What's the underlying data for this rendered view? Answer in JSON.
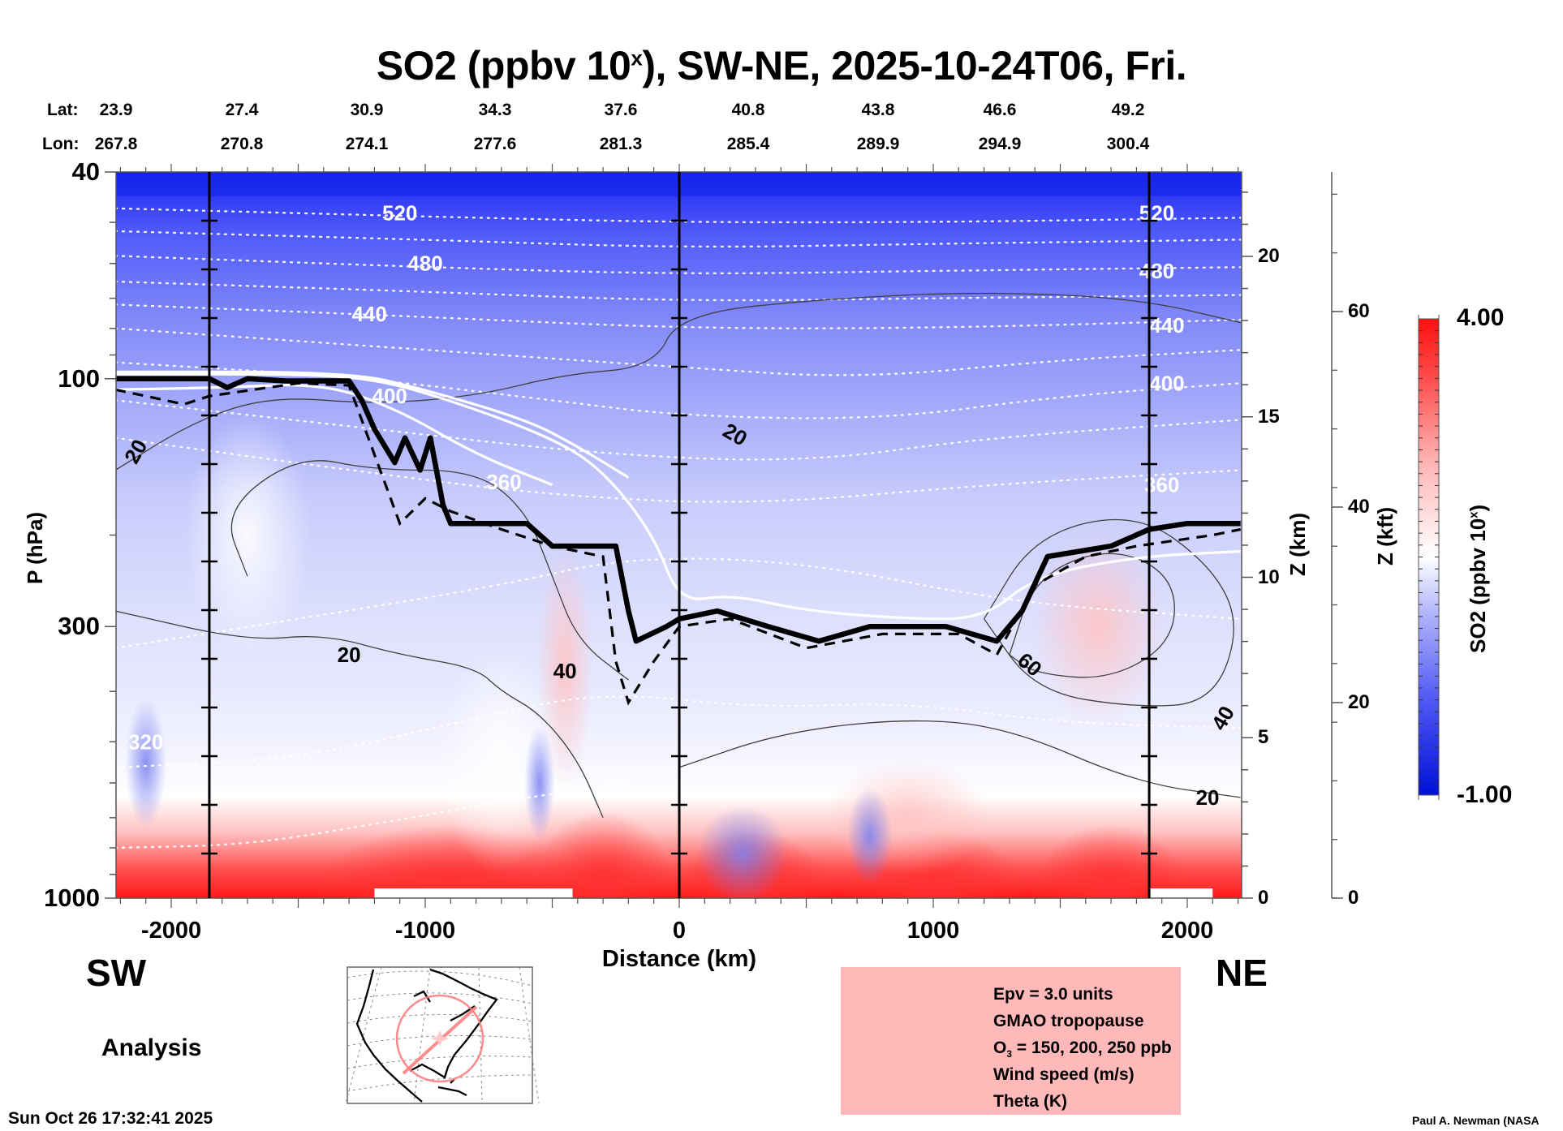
{
  "title": {
    "main": "SO2 (ppbv 10",
    "superscript": "x",
    "rest": "), SW-NE, 2025-10-24T06, Fri."
  },
  "header": {
    "lat_key": "Lat:",
    "lon_key": "Lon:",
    "points": [
      {
        "lat": "23.9",
        "lon": "267.8"
      },
      {
        "lat": "27.4",
        "lon": "270.8"
      },
      {
        "lat": "30.9",
        "lon": "274.1"
      },
      {
        "lat": "34.3",
        "lon": "277.6"
      },
      {
        "lat": "37.6",
        "lon": "281.3"
      },
      {
        "lat": "40.8",
        "lon": "285.4"
      },
      {
        "lat": "43.8",
        "lon": "289.9"
      },
      {
        "lat": "46.6",
        "lon": "294.9"
      },
      {
        "lat": "49.2",
        "lon": "300.4"
      }
    ]
  },
  "labels": {
    "sw": "SW",
    "ne": "NE",
    "analysis": "Analysis",
    "timestamp": "Sun Oct 26 17:32:41 2025",
    "credit": "Paul A. Newman (NASA"
  },
  "legend": {
    "items": [
      {
        "style": "dashed-thick",
        "label": "Epv = 3.0 units"
      },
      {
        "style": "solid-thick",
        "label": "GMAO tropopause"
      },
      {
        "style": "white-solid",
        "label_pre": "O",
        "label_sub": "3",
        "label_post": " = 150, 200, 250 ppb"
      },
      {
        "style": "thin-solid",
        "label": "Wind speed (m/s)"
      },
      {
        "style": "white-dotted",
        "label": "Theta (K)"
      }
    ]
  },
  "colors": {
    "field_min": "#0010d8",
    "field_mid": "#ffffff",
    "field_max": "#ff1010",
    "legend_bg": "#ffb9b9",
    "map_track": "#ff8080"
  },
  "chart_data": {
    "type": "heatmap",
    "title": "SO2 (ppbv 10^x), SW-NE, 2025-10-24T06, Fri.",
    "xlabel": "Distance (km)",
    "ylabel": "P (hPa)",
    "ylabel_right_1": "Z (km)",
    "ylabel_right_2": "Z (kft)",
    "xlim": [
      -2220,
      2210
    ],
    "ylim": [
      1000,
      40
    ],
    "yscale": "log",
    "x_ticks": [
      -2000,
      -1000,
      0,
      1000,
      2000
    ],
    "x_tick_labels": [
      "-2000",
      "-1000",
      "0",
      "1000",
      "2000"
    ],
    "y_ticks": [
      40,
      100,
      300,
      1000
    ],
    "y_tick_labels": [
      "40",
      "100",
      "300",
      "1000"
    ],
    "z_km_ticks": [
      0,
      5,
      10,
      15,
      20
    ],
    "z_kft_ticks": [
      0,
      20,
      40,
      60
    ],
    "vertical_markers_km": [
      -1850,
      0,
      1850
    ],
    "colorbar": {
      "label": "SO2 (ppbv 10^x)",
      "label_main": "SO2 (ppbv 10",
      "label_sup": "x",
      "label_end": ")",
      "min": -1.0,
      "max": 4.0,
      "min_label": "-1.00",
      "max_label": "4.00",
      "levels": 40
    },
    "theta_contours_K": [
      {
        "value": 520,
        "label": "520",
        "points": [
          [
            -2220,
            47
          ],
          [
            -1500,
            48
          ],
          [
            -800,
            49
          ],
          [
            0,
            50
          ],
          [
            1000,
            50
          ],
          [
            2210,
            49
          ]
        ]
      },
      {
        "value": 500,
        "label": "",
        "points": [
          [
            -2220,
            52
          ],
          [
            -1000,
            54
          ],
          [
            0,
            56
          ],
          [
            1000,
            55
          ],
          [
            2210,
            54
          ]
        ]
      },
      {
        "value": 480,
        "label": "480",
        "points": [
          [
            -2220,
            58
          ],
          [
            -1000,
            61
          ],
          [
            0,
            63
          ],
          [
            1000,
            62
          ],
          [
            2210,
            61
          ]
        ]
      },
      {
        "value": 460,
        "label": "",
        "points": [
          [
            -2220,
            65
          ],
          [
            -1000,
            68
          ],
          [
            0,
            71
          ],
          [
            1000,
            70
          ],
          [
            2210,
            69
          ]
        ]
      },
      {
        "value": 440,
        "label": "440",
        "points": [
          [
            -2220,
            72
          ],
          [
            -1000,
            76
          ],
          [
            0,
            80
          ],
          [
            1000,
            80
          ],
          [
            2210,
            77
          ]
        ]
      },
      {
        "value": 420,
        "label": "",
        "points": [
          [
            -2220,
            80
          ],
          [
            -1000,
            88
          ],
          [
            0,
            95
          ],
          [
            700,
            100
          ],
          [
            1500,
            92
          ],
          [
            2210,
            88
          ]
        ]
      },
      {
        "value": 400,
        "label": "400",
        "points": [
          [
            -2220,
            93
          ],
          [
            -1300,
            99
          ],
          [
            -500,
            110
          ],
          [
            0,
            118
          ],
          [
            800,
            120
          ],
          [
            1500,
            108
          ],
          [
            2210,
            102
          ]
        ]
      },
      {
        "value": 380,
        "label": "",
        "points": [
          [
            -2220,
            110
          ],
          [
            -1200,
            125
          ],
          [
            -300,
            140
          ],
          [
            500,
            145
          ],
          [
            1200,
            130
          ],
          [
            2210,
            120
          ]
        ]
      },
      {
        "value": 360,
        "label": "360",
        "points": [
          [
            -2220,
            130
          ],
          [
            -1300,
            150
          ],
          [
            -500,
            168
          ],
          [
            300,
            175
          ],
          [
            1200,
            160
          ],
          [
            2210,
            150
          ]
        ]
      },
      {
        "value": 320,
        "label": "320",
        "points": [
          [
            -2220,
            330
          ],
          [
            -1500,
            290
          ],
          [
            -700,
            250
          ],
          [
            -200,
            220
          ],
          [
            500,
            225
          ],
          [
            1300,
            270
          ],
          [
            2210,
            290
          ]
        ]
      },
      {
        "value": 300,
        "label": "",
        "points": [
          [
            -2220,
            560
          ],
          [
            -1500,
            540
          ],
          [
            -800,
            450
          ],
          [
            -300,
            400
          ],
          [
            300,
            430
          ],
          [
            900,
            420
          ],
          [
            1500,
            460
          ],
          [
            2210,
            470
          ]
        ]
      },
      {
        "value": 290,
        "label": "",
        "points": [
          [
            -2220,
            800
          ],
          [
            -1700,
            790
          ],
          [
            -1200,
            720
          ],
          [
            -600,
            640
          ],
          [
            -200,
            600
          ]
        ]
      }
    ],
    "wind_contours_ms": [
      {
        "value": 20,
        "label": "20",
        "points": [
          [
            -2220,
            150
          ],
          [
            -1900,
            120
          ],
          [
            -1600,
            108
          ],
          [
            -1200,
            112
          ],
          [
            -800,
            108
          ],
          [
            -450,
            98
          ],
          [
            -100,
            95
          ],
          [
            0,
            75
          ],
          [
            600,
            70
          ],
          [
            1200,
            68
          ],
          [
            1800,
            70
          ],
          [
            2210,
            78
          ]
        ]
      },
      {
        "value": 20,
        "label": "20",
        "points": [
          [
            -2220,
            280
          ],
          [
            -1700,
            320
          ],
          [
            -1400,
            310
          ],
          [
            -1100,
            340
          ],
          [
            -800,
            360
          ],
          [
            -700,
            400
          ],
          [
            -550,
            440
          ],
          [
            -400,
            540
          ],
          [
            -300,
            700
          ]
        ]
      },
      {
        "value": 40,
        "label": "40",
        "points": [
          [
            -1700,
            240
          ],
          [
            -1800,
            180
          ],
          [
            -1500,
            140
          ],
          [
            -1200,
            150
          ],
          [
            -800,
            150
          ],
          [
            -600,
            180
          ],
          [
            -500,
            240
          ],
          [
            -400,
            320
          ],
          [
            -200,
            380
          ]
        ]
      },
      {
        "value": 60,
        "label": "60",
        "points": [
          [
            1300,
            340
          ],
          [
            1400,
            240
          ],
          [
            1700,
            210
          ],
          [
            1950,
            240
          ],
          [
            1950,
            320
          ],
          [
            1700,
            380
          ],
          [
            1400,
            370
          ],
          [
            1300,
            340
          ]
        ]
      },
      {
        "value": 40,
        "label": "40",
        "points": [
          [
            1200,
            290
          ],
          [
            1400,
            200
          ],
          [
            1800,
            180
          ],
          [
            2100,
            230
          ],
          [
            2210,
            300
          ],
          [
            2100,
            420
          ],
          [
            1800,
            430
          ],
          [
            1400,
            400
          ],
          [
            1200,
            290
          ]
        ]
      },
      {
        "value": 20,
        "label": "20",
        "points": [
          [
            0,
            560
          ],
          [
            400,
            480
          ],
          [
            900,
            450
          ],
          [
            1300,
            470
          ],
          [
            1800,
            600
          ],
          [
            2210,
            640
          ]
        ]
      }
    ],
    "gmao_tropopause_hPa": {
      "points": [
        [
          -2220,
          100
        ],
        [
          -1850,
          100
        ],
        [
          -1780,
          104
        ],
        [
          -1700,
          100
        ],
        [
          -1550,
          101
        ],
        [
          -1300,
          101
        ],
        [
          -1250,
          110
        ],
        [
          -1200,
          125
        ],
        [
          -1120,
          145
        ],
        [
          -1080,
          130
        ],
        [
          -1020,
          150
        ],
        [
          -980,
          130
        ],
        [
          -930,
          175
        ],
        [
          -900,
          190
        ],
        [
          -600,
          190
        ],
        [
          -500,
          210
        ],
        [
          -250,
          210
        ],
        [
          -200,
          280
        ],
        [
          -170,
          320
        ],
        [
          -50,
          300
        ],
        [
          0,
          290
        ],
        [
          150,
          280
        ],
        [
          350,
          300
        ],
        [
          550,
          320
        ],
        [
          750,
          300
        ],
        [
          1050,
          300
        ],
        [
          1250,
          320
        ],
        [
          1350,
          280
        ],
        [
          1450,
          220
        ],
        [
          1700,
          210
        ],
        [
          1850,
          195
        ],
        [
          2000,
          190
        ],
        [
          2210,
          190
        ]
      ]
    },
    "epv_3pvu_hPa": {
      "points": [
        [
          -2220,
          105
        ],
        [
          -2100,
          108
        ],
        [
          -1950,
          112
        ],
        [
          -1850,
          108
        ],
        [
          -1500,
          102
        ],
        [
          -1300,
          103
        ],
        [
          -1200,
          140
        ],
        [
          -1100,
          190
        ],
        [
          -1000,
          170
        ],
        [
          -900,
          180
        ],
        [
          -700,
          195
        ],
        [
          -500,
          210
        ],
        [
          -300,
          220
        ],
        [
          -250,
          350
        ],
        [
          -200,
          420
        ],
        [
          -100,
          350
        ],
        [
          0,
          300
        ],
        [
          200,
          290
        ],
        [
          500,
          330
        ],
        [
          800,
          310
        ],
        [
          1100,
          310
        ],
        [
          1250,
          340
        ],
        [
          1400,
          250
        ],
        [
          1600,
          220
        ],
        [
          1800,
          210
        ],
        [
          2100,
          200
        ],
        [
          2210,
          195
        ]
      ]
    },
    "ozone_ppb": [
      {
        "value": 150,
        "points": [
          [
            -2220,
            98
          ],
          [
            -1500,
            98
          ],
          [
            -1200,
            100
          ],
          [
            -900,
            110
          ],
          [
            -500,
            130
          ],
          [
            -300,
            150
          ],
          [
            -100,
            200
          ],
          [
            0,
            270
          ],
          [
            200,
            260
          ],
          [
            500,
            280
          ],
          [
            900,
            290
          ],
          [
            1200,
            290
          ],
          [
            1400,
            240
          ],
          [
            1800,
            220
          ],
          [
            2210,
            215
          ]
        ]
      },
      {
        "value": 200,
        "points": [
          [
            -2220,
            97
          ],
          [
            -1300,
            97
          ],
          [
            -1000,
            105
          ],
          [
            -600,
            120
          ],
          [
            -400,
            135
          ],
          [
            -200,
            155
          ]
        ]
      },
      {
        "value": 250,
        "points": [
          [
            -2220,
            105
          ],
          [
            -1800,
            104
          ],
          [
            -1400,
            102
          ],
          [
            -1100,
            115
          ],
          [
            -800,
            140
          ],
          [
            -500,
            160
          ]
        ]
      }
    ],
    "so2_features": [
      {
        "region": "stratosphere_top",
        "x_range": [
          -2220,
          2210
        ],
        "p_range": [
          40,
          60
        ],
        "value": -0.9
      },
      {
        "region": "surface_boundary_layer_sw",
        "x_range": [
          -1800,
          0
        ],
        "p_range": [
          850,
          1000
        ],
        "value": 3.8
      },
      {
        "region": "surface_boundary_layer_ne",
        "x_range": [
          0,
          2210
        ],
        "p_range": [
          870,
          1000
        ],
        "value": 3.5
      },
      {
        "region": "midlevel_ne_red",
        "x_range": [
          500,
          1300
        ],
        "p_range": [
          600,
          750
        ],
        "value": 2.2
      },
      {
        "region": "upper_trop_ne_pink",
        "x_range": [
          1300,
          2000
        ],
        "p_range": [
          220,
          400
        ],
        "value": 2.0
      }
    ]
  }
}
